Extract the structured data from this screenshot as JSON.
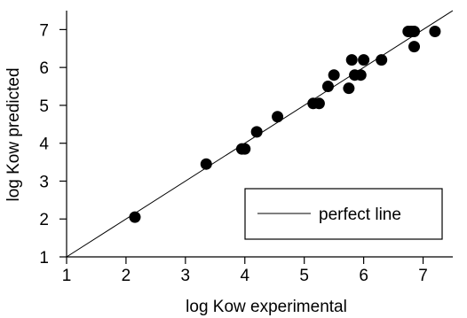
{
  "chart_data": {
    "type": "scatter",
    "title": "",
    "xlabel": "log Kow experimental",
    "ylabel": "log Kow predicted",
    "xlim": [
      1,
      7.5
    ],
    "ylim": [
      1,
      7.5
    ],
    "xticks": [
      "1",
      "2",
      "3",
      "4",
      "5",
      "6",
      "7"
    ],
    "yticks": [
      "1",
      "2",
      "3",
      "4",
      "5",
      "6",
      "7"
    ],
    "grid": false,
    "legend": {
      "placement": "bottom-right",
      "entries": [
        "perfect line"
      ]
    },
    "reference_line": {
      "name": "perfect line",
      "points": [
        [
          1,
          1
        ],
        [
          7.5,
          7.5
        ]
      ]
    },
    "series": [
      {
        "marker": "filled-circle",
        "color": "#000000",
        "x": [
          2.15,
          3.35,
          3.95,
          4.0,
          4.2,
          4.55,
          5.15,
          5.25,
          5.4,
          5.5,
          5.75,
          5.8,
          5.85,
          5.95,
          6.0,
          6.3,
          6.75,
          6.8,
          6.85,
          6.85,
          7.2
        ],
        "y": [
          2.05,
          3.45,
          3.85,
          3.85,
          4.3,
          4.7,
          5.05,
          5.05,
          5.5,
          5.8,
          5.45,
          6.2,
          5.8,
          5.8,
          6.2,
          6.2,
          6.95,
          6.95,
          6.95,
          6.55,
          6.95
        ]
      }
    ]
  }
}
